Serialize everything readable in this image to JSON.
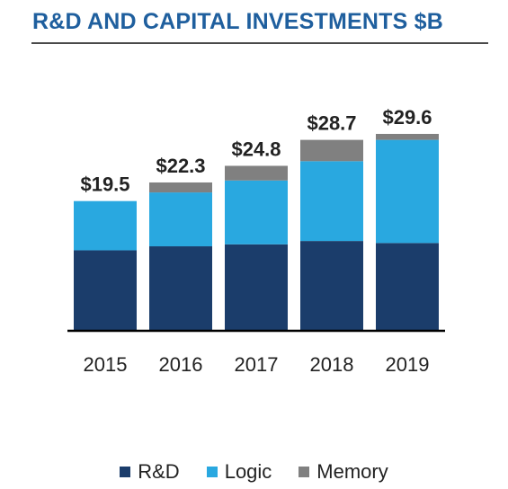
{
  "title": "R&D AND CAPITAL INVESTMENTS $B",
  "colors": {
    "rd": "#1b3d6b",
    "logic": "#29a8e0",
    "memory": "#808080",
    "title": "#1f5f9e"
  },
  "chart_data": {
    "type": "bar",
    "stacked": true,
    "categories": [
      "2015",
      "2016",
      "2017",
      "2018",
      "2019"
    ],
    "series": [
      {
        "name": "R&D",
        "values": [
          12.1,
          12.7,
          13.0,
          13.5,
          13.2
        ]
      },
      {
        "name": "Logic",
        "values": [
          7.4,
          8.1,
          9.6,
          12.0,
          15.5
        ]
      },
      {
        "name": "Memory",
        "values": [
          0.0,
          1.5,
          2.2,
          3.2,
          0.9
        ]
      }
    ],
    "totals": [
      "$19.5",
      "$22.3",
      "$24.8",
      "$28.7",
      "$29.6"
    ],
    "ylim": [
      0,
      30
    ],
    "legend_position": "bottom"
  }
}
